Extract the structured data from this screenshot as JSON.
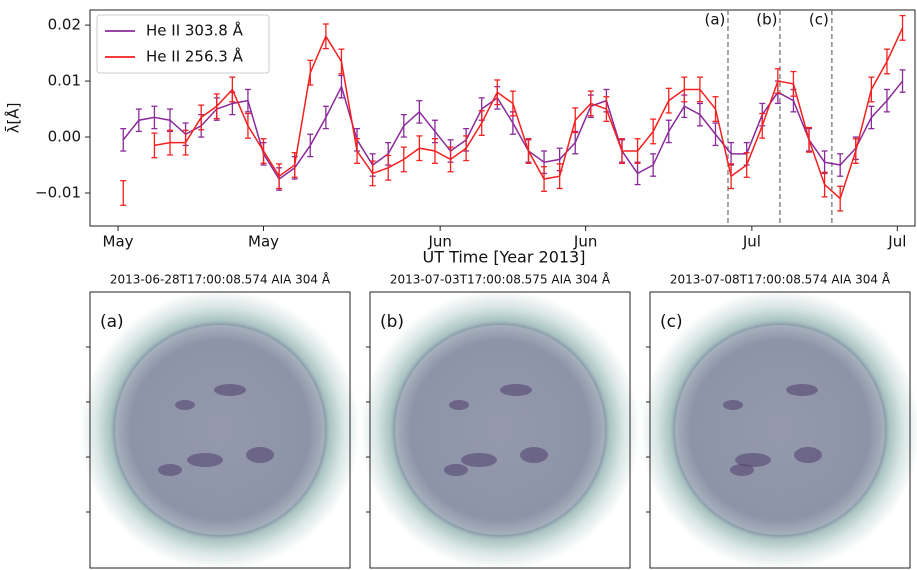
{
  "chart_data": {
    "type": "line",
    "xlabel": "UT Time [Year 2013]",
    "ylabel": "λ̄[Å]",
    "x": [
      0.5,
      2,
      3.5,
      5,
      6.5,
      8,
      9.5,
      11,
      12.5,
      14,
      15.5,
      17,
      18.5,
      20,
      21.5,
      23,
      24.5,
      26,
      27.5,
      29,
      30.5,
      32,
      33.5,
      35,
      36.5,
      38,
      39.5,
      41,
      42.5,
      44,
      45.5,
      47,
      48.5,
      50,
      51.5,
      53,
      54.5,
      56,
      57.5,
      59,
      60.5,
      62,
      63.5,
      65,
      66.5,
      68,
      69.5,
      71,
      72.5,
      74,
      75.5
    ],
    "xlim": [
      -2.7,
      76.7
    ],
    "xticks": [
      {
        "value": 0,
        "label": "May"
      },
      {
        "value": 14,
        "label": "May"
      },
      {
        "value": 31,
        "label": "Jun"
      },
      {
        "value": 45,
        "label": "Jun"
      },
      {
        "value": 61,
        "label": "Jul"
      },
      {
        "value": 75,
        "label": "Jul"
      }
    ],
    "ylim": [
      -0.0159,
      0.0227
    ],
    "yticks": [
      {
        "value": -0.01,
        "label": "−0.01"
      },
      {
        "value": 0,
        "label": "0.00"
      },
      {
        "value": 0.01,
        "label": "0.01"
      },
      {
        "value": 0.02,
        "label": "0.02"
      }
    ],
    "legend": "upper left",
    "series": [
      {
        "name": "He II 303.8 Å",
        "color": "#8b2a9b",
        "error": 0.002,
        "values": [
          -0.0005,
          0.003,
          0.0035,
          0.003,
          0.0005,
          0.002,
          0.005,
          0.006,
          0.0065,
          -0.003,
          -0.0075,
          -0.0055,
          -0.0015,
          0.0035,
          0.009,
          -0.0005,
          -0.005,
          -0.003,
          0.002,
          0.0045,
          0.001,
          -0.0025,
          -0.0005,
          0.005,
          0.007,
          0.0025,
          -0.0025,
          -0.0045,
          -0.004,
          -0.001,
          0.0055,
          0.0065,
          -0.0025,
          -0.0065,
          -0.005,
          0.001,
          0.0055,
          0.004,
          0.0005,
          -0.003,
          -0.003,
          0.004,
          0.008,
          0.0065,
          -0.0005,
          -0.0045,
          -0.005,
          -0.002,
          0.0035,
          0.0065,
          0.01
        ]
      },
      {
        "name": "He II 256.3 Å",
        "color": "#f5201e",
        "error": 0.0022,
        "values": [
          -0.01,
          null,
          -0.0015,
          -0.001,
          -0.001,
          0.0035,
          0.0055,
          0.0085,
          0.002,
          -0.0025,
          -0.007,
          -0.005,
          0.0115,
          0.018,
          0.0135,
          -0.0025,
          -0.0065,
          -0.0055,
          -0.004,
          -0.002,
          -0.0025,
          -0.004,
          -0.002,
          0.0025,
          0.008,
          0.006,
          -0.0025,
          -0.0075,
          -0.007,
          0.003,
          0.006,
          0.005,
          -0.0025,
          -0.0025,
          0.001,
          0.0065,
          0.0085,
          0.0085,
          0.005,
          -0.007,
          -0.005,
          0.002,
          0.01,
          0.0095,
          -0.0005,
          -0.0085,
          -0.011,
          -0.0025,
          0.0085,
          0.0135,
          0.0195
        ]
      }
    ],
    "vlines": [
      {
        "x": 58.7,
        "label": "(a)"
      },
      {
        "x": 63.7,
        "label": "(b)"
      },
      {
        "x": 68.7,
        "label": "(c)"
      }
    ]
  },
  "panels": [
    {
      "title": "2013-06-28T17:00:08.574 AIA 304 Å",
      "label": "(a)"
    },
    {
      "title": "2013-07-03T17:00:08.575 AIA 304 Å",
      "label": "(b)"
    },
    {
      "title": "2013-07-08T17:00:08.574 AIA 304 Å",
      "label": "(c)"
    }
  ]
}
